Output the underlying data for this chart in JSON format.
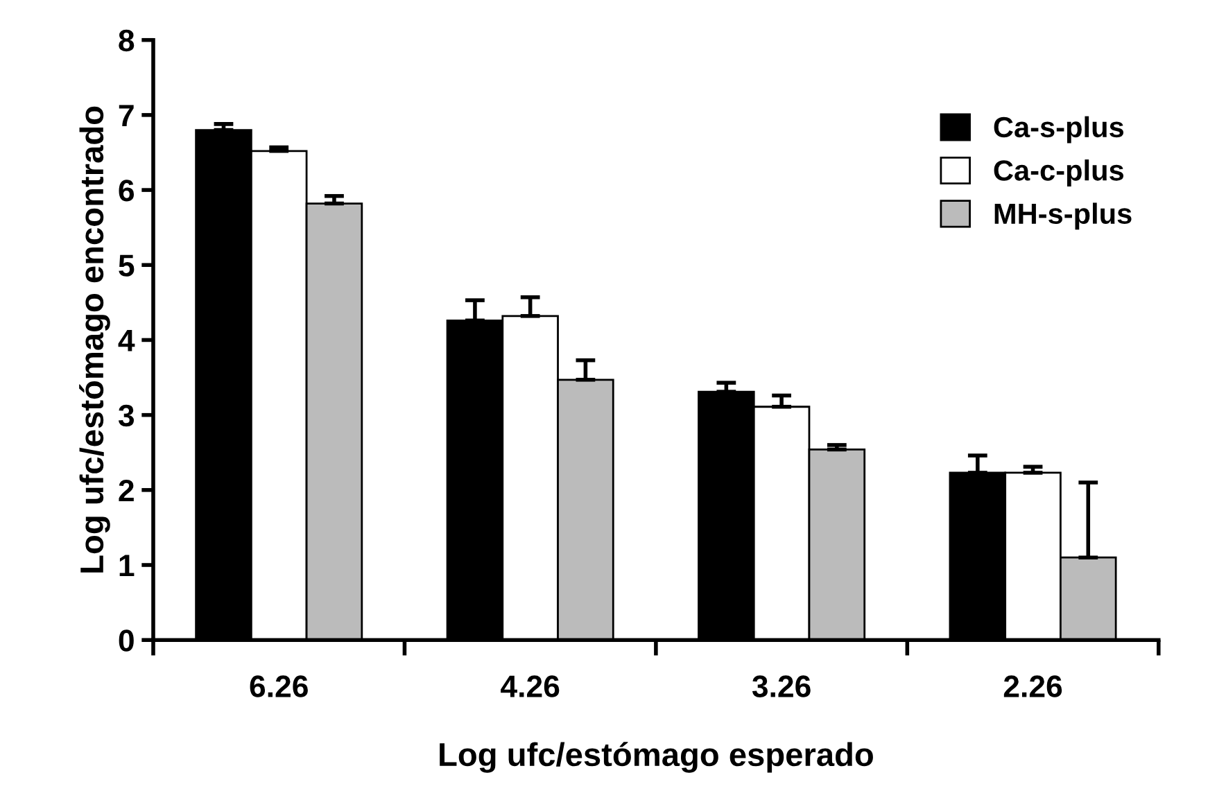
{
  "chart_data": {
    "type": "bar",
    "xlabel": "Log ufc/estómago esperado",
    "ylabel": "Log ufc/estómago encontrado",
    "categories": [
      "6.26",
      "4.26",
      "3.26",
      "2.26"
    ],
    "series": [
      {
        "name": "Ca-s-plus",
        "color": "#000000",
        "values": [
          6.8,
          4.26,
          3.31,
          2.23
        ],
        "errors": [
          [
            6.8,
            6.88
          ],
          [
            4.26,
            4.53
          ],
          [
            3.31,
            3.43
          ],
          [
            2.23,
            2.46
          ]
        ]
      },
      {
        "name": "Ca-c-plus",
        "color": "#ffffff",
        "values": [
          6.52,
          4.32,
          3.11,
          2.23
        ],
        "errors": [
          [
            6.52,
            6.57
          ],
          [
            4.32,
            4.57
          ],
          [
            3.11,
            3.26
          ],
          [
            2.23,
            2.31
          ]
        ]
      },
      {
        "name": "MH-s-plus",
        "color": "#bbbbbb",
        "values": [
          5.82,
          3.47,
          2.54,
          1.1
        ],
        "errors": [
          [
            5.82,
            5.92
          ],
          [
            3.47,
            3.73
          ],
          [
            2.54,
            2.6
          ],
          [
            1.1,
            2.1
          ]
        ]
      }
    ],
    "ylim": [
      0,
      8
    ],
    "yticks": [
      0,
      1,
      2,
      3,
      4,
      5,
      6,
      7,
      8
    ],
    "grid": false,
    "legend": "right"
  }
}
